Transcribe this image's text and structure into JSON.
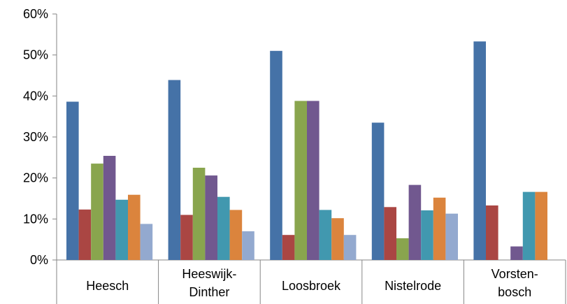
{
  "chart_data": {
    "type": "bar",
    "categories": [
      [
        "Heesch"
      ],
      [
        "Heeswijk-",
        "Dinther"
      ],
      [
        "Loosbroek"
      ],
      [
        "Nistelrode"
      ],
      [
        "Vorsten-",
        "bosch"
      ]
    ],
    "series": [
      {
        "color": "#4572A7",
        "values": [
          38.6,
          43.9,
          51.0,
          33.5,
          53.3
        ]
      },
      {
        "color": "#AA4643",
        "values": [
          12.3,
          11.0,
          6.1,
          12.9,
          13.3
        ]
      },
      {
        "color": "#89A54E",
        "values": [
          23.5,
          22.5,
          38.8,
          5.3,
          0
        ]
      },
      {
        "color": "#71588F",
        "values": [
          25.4,
          20.6,
          38.8,
          18.3,
          3.3
        ]
      },
      {
        "color": "#4198AF",
        "values": [
          14.7,
          15.4,
          12.2,
          12.1,
          16.6
        ]
      },
      {
        "color": "#DB843D",
        "values": [
          15.9,
          12.2,
          10.2,
          15.2,
          16.6
        ]
      },
      {
        "color": "#93A9CF",
        "values": [
          8.8,
          7.0,
          6.1,
          11.3,
          0
        ]
      }
    ],
    "yticks": [
      "0%",
      "10%",
      "20%",
      "30%",
      "40%",
      "50%",
      "60%"
    ],
    "ylim": [
      0,
      60
    ],
    "grid": false,
    "legend": "none"
  }
}
